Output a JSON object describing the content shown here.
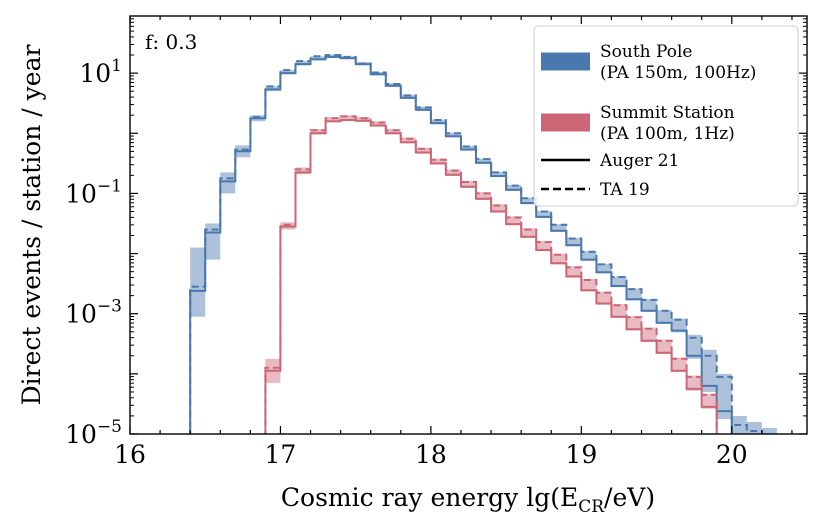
{
  "chart_data": {
    "type": "line",
    "title": "",
    "annotation": "f: 0.3",
    "xlabel_main": "Cosmic ray energy lg(E",
    "xlabel_sub": "CR",
    "xlabel_end": "/eV)",
    "ylabel": "Direct events / station / year",
    "xlim": [
      16,
      20.5
    ],
    "ylim_log10": [
      -5,
      1.95
    ],
    "x_ticks": [
      {
        "value": 16,
        "label": "16"
      },
      {
        "value": 17,
        "label": "17"
      },
      {
        "value": 18,
        "label": "18"
      },
      {
        "value": 19,
        "label": "19"
      },
      {
        "value": 20,
        "label": "20"
      }
    ],
    "y_ticks": [
      {
        "exp": 1,
        "base": "10",
        "sup": "1"
      },
      {
        "exp": -1,
        "base": "10",
        "sup": "−1"
      },
      {
        "exp": -3,
        "base": "10",
        "sup": "−3"
      },
      {
        "exp": -5,
        "base": "10",
        "sup": "−5"
      }
    ],
    "bin_edges": [
      16.3,
      16.4,
      16.5,
      16.6,
      16.7,
      16.8,
      16.9,
      17.0,
      17.1,
      17.2,
      17.3,
      17.4,
      17.5,
      17.6,
      17.7,
      17.8,
      17.9,
      18.0,
      18.1,
      18.2,
      18.3,
      18.4,
      18.5,
      18.6,
      18.7,
      18.8,
      18.9,
      19.0,
      19.1,
      19.2,
      19.3,
      19.4,
      19.5,
      19.6,
      19.7,
      19.8,
      19.9,
      20.0,
      20.1,
      20.2,
      20.3,
      20.4
    ],
    "series": [
      {
        "name": "South Pole",
        "detail": "(PA 150m, 100Hz)",
        "color": "#4a78ad",
        "auger21_log10": [
          -5.2,
          -2.62,
          -1.65,
          -0.8,
          -0.3,
          0.25,
          0.73,
          1.0,
          1.15,
          1.23,
          1.27,
          1.25,
          1.15,
          0.98,
          0.79,
          0.59,
          0.39,
          0.17,
          -0.05,
          -0.27,
          -0.49,
          -0.71,
          -0.94,
          -1.16,
          -1.39,
          -1.62,
          -1.86,
          -2.1,
          -2.31,
          -2.54,
          -2.76,
          -2.95,
          -3.15,
          -3.28,
          -3.7,
          -4.2,
          -4.62,
          -5.2,
          -5.2,
          -5.2,
          -5.2
        ],
        "ta19_log10": [
          -5.2,
          -2.55,
          -1.6,
          -0.75,
          -0.27,
          0.27,
          0.78,
          1.05,
          1.2,
          1.28,
          1.3,
          1.27,
          1.16,
          1.01,
          0.82,
          0.63,
          0.43,
          0.22,
          0.0,
          -0.22,
          -0.43,
          -0.65,
          -0.87,
          -1.08,
          -1.3,
          -1.52,
          -1.75,
          -1.97,
          -2.18,
          -2.39,
          -2.59,
          -2.77,
          -2.95,
          -3.1,
          -3.4,
          -3.7,
          -4.05,
          -4.85,
          -4.95,
          -5.2,
          -5.2
        ],
        "band_log10": [
          [
            -5.2,
            -5.2
          ],
          [
            -3.05,
            -1.9
          ],
          [
            -2.1,
            -1.5
          ],
          [
            -1.0,
            -0.65
          ],
          [
            -0.4,
            -0.2
          ],
          [
            0.2,
            0.3
          ],
          [
            0.7,
            0.78
          ],
          [
            0.98,
            1.05
          ],
          [
            1.13,
            1.2
          ],
          [
            1.21,
            1.28
          ],
          [
            1.25,
            1.31
          ],
          [
            1.23,
            1.28
          ],
          [
            1.13,
            1.18
          ],
          [
            0.96,
            1.02
          ],
          [
            0.77,
            0.83
          ],
          [
            0.57,
            0.64
          ],
          [
            0.37,
            0.44
          ],
          [
            0.15,
            0.23
          ],
          [
            -0.07,
            0.01
          ],
          [
            -0.29,
            -0.21
          ],
          [
            -0.51,
            -0.42
          ],
          [
            -0.73,
            -0.64
          ],
          [
            -0.96,
            -0.86
          ],
          [
            -1.18,
            -1.07
          ],
          [
            -1.41,
            -1.29
          ],
          [
            -1.64,
            -1.51
          ],
          [
            -1.88,
            -1.74
          ],
          [
            -2.12,
            -1.96
          ],
          [
            -2.33,
            -2.17
          ],
          [
            -2.56,
            -2.38
          ],
          [
            -2.78,
            -2.58
          ],
          [
            -2.97,
            -2.76
          ],
          [
            -3.17,
            -2.94
          ],
          [
            -3.31,
            -3.08
          ],
          [
            -3.75,
            -3.35
          ],
          [
            -4.3,
            -3.6
          ],
          [
            -4.75,
            -4.0
          ],
          [
            -5.2,
            -4.7
          ],
          [
            -5.2,
            -4.8
          ],
          [
            -5.2,
            -4.9
          ],
          [
            -5.2,
            -5.2
          ]
        ]
      },
      {
        "name": "Summit Station",
        "detail": "(PA 100m, 1Hz)",
        "color": "#cc6677",
        "auger21_log10": [
          -5.2,
          -5.2,
          -5.2,
          -5.2,
          -5.2,
          -5.2,
          -3.95,
          -1.55,
          -0.65,
          0.0,
          0.2,
          0.22,
          0.21,
          0.13,
          0.0,
          -0.15,
          -0.32,
          -0.5,
          -0.69,
          -0.89,
          -1.09,
          -1.3,
          -1.51,
          -1.72,
          -1.94,
          -2.16,
          -2.38,
          -2.61,
          -2.83,
          -3.05,
          -3.26,
          -3.45,
          -3.65,
          -3.95,
          -4.25,
          -4.55,
          -5.2,
          -5.2,
          -5.2,
          -5.2,
          -5.2
        ],
        "ta19_log10": [
          -5.2,
          -5.2,
          -5.2,
          -5.2,
          -5.2,
          -5.2,
          -3.9,
          -1.52,
          -0.6,
          0.05,
          0.25,
          0.28,
          0.25,
          0.18,
          0.05,
          -0.09,
          -0.26,
          -0.44,
          -0.62,
          -0.81,
          -1.0,
          -1.2,
          -1.4,
          -1.6,
          -1.81,
          -2.02,
          -2.23,
          -2.44,
          -2.65,
          -2.86,
          -3.06,
          -3.25,
          -3.45,
          -3.75,
          -4.05,
          -4.35,
          -5.2,
          -5.2,
          -5.2,
          -5.2,
          -5.2
        ],
        "band_log10": [
          [
            -5.2,
            -5.2
          ],
          [
            -5.2,
            -5.2
          ],
          [
            -5.2,
            -5.2
          ],
          [
            -5.2,
            -5.2
          ],
          [
            -5.2,
            -5.2
          ],
          [
            -5.2,
            -5.2
          ],
          [
            -4.15,
            -3.75
          ],
          [
            -1.6,
            -1.48
          ],
          [
            -0.68,
            -0.57
          ],
          [
            -0.02,
            0.07
          ],
          [
            0.18,
            0.27
          ],
          [
            0.2,
            0.3
          ],
          [
            0.19,
            0.27
          ],
          [
            0.11,
            0.2
          ],
          [
            -0.02,
            0.07
          ],
          [
            -0.17,
            -0.07
          ],
          [
            -0.34,
            -0.24
          ],
          [
            -0.52,
            -0.42
          ],
          [
            -0.71,
            -0.6
          ],
          [
            -0.91,
            -0.79
          ],
          [
            -1.11,
            -0.98
          ],
          [
            -1.32,
            -1.18
          ],
          [
            -1.53,
            -1.38
          ],
          [
            -1.74,
            -1.58
          ],
          [
            -1.96,
            -1.79
          ],
          [
            -2.18,
            -2.0
          ],
          [
            -2.4,
            -2.21
          ],
          [
            -2.63,
            -2.42
          ],
          [
            -2.85,
            -2.63
          ],
          [
            -3.07,
            -2.84
          ],
          [
            -3.28,
            -3.04
          ],
          [
            -3.47,
            -3.23
          ],
          [
            -3.67,
            -3.43
          ],
          [
            -3.97,
            -3.73
          ],
          [
            -4.28,
            -4.03
          ],
          [
            -4.58,
            -4.33
          ],
          [
            -5.2,
            -5.2
          ],
          [
            -5.2,
            -5.2
          ],
          [
            -5.2,
            -5.2
          ],
          [
            -5.2,
            -5.2
          ],
          [
            -5.2,
            -5.2
          ]
        ]
      }
    ],
    "legend": {
      "placement": "top-right",
      "entries": [
        {
          "kind": "patch",
          "series": 0,
          "line1": "South Pole",
          "line2": "(PA 150m, 100Hz)"
        },
        {
          "kind": "patch",
          "series": 1,
          "line1": "Summit Station",
          "line2": "(PA 100m, 1Hz)"
        },
        {
          "kind": "solid",
          "line1": "Auger 21"
        },
        {
          "kind": "dashed",
          "line1": "TA 19"
        }
      ]
    }
  }
}
